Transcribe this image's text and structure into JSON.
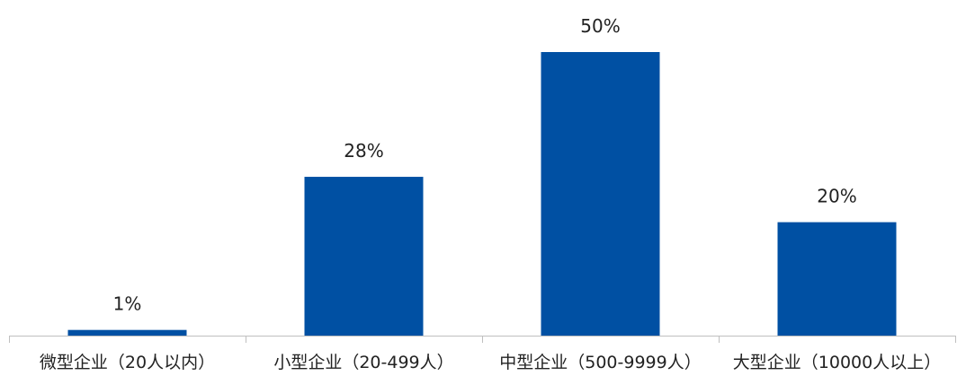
{
  "chart_data": {
    "type": "bar",
    "title": "",
    "xlabel": "",
    "ylabel": "",
    "categories": [
      "微型企业（20人以内）",
      "小型企业（20-499人）",
      "中型企业（500-9999人）",
      "大型企业（10000人以上）"
    ],
    "values": [
      1,
      28,
      50,
      20
    ],
    "data_labels": [
      "1%",
      "28%",
      "50%",
      "20%"
    ],
    "unit": "%",
    "ylim": [
      0,
      50
    ],
    "grid": false,
    "legend": "none",
    "bar_color": "#0050A3"
  }
}
